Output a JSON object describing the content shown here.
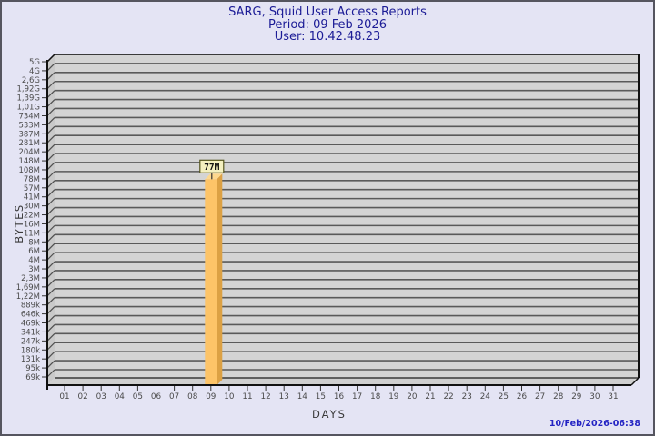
{
  "header": {
    "title": "SARG, Squid User Access Reports",
    "period": "Period: 09 Feb 2026",
    "user": "User: 10.42.48.23",
    "text_color": "#1C1C96"
  },
  "footer": {
    "timestamp": "10/Feb/2026-06:38",
    "text_color": "#2323C3"
  },
  "chart_data": {
    "type": "bar",
    "style": "3d-bar",
    "title": "SARG, Squid User Access Reports",
    "subtitle_lines": [
      "Period: 09 Feb 2026",
      "User: 10.42.48.23"
    ],
    "xlabel": "DAYS",
    "ylabel": "BYTES",
    "grid": true,
    "x_categories": [
      "01",
      "02",
      "03",
      "04",
      "05",
      "06",
      "07",
      "08",
      "09",
      "10",
      "11",
      "12",
      "13",
      "14",
      "15",
      "16",
      "17",
      "18",
      "19",
      "20",
      "21",
      "22",
      "23",
      "24",
      "25",
      "26",
      "27",
      "28",
      "29",
      "30",
      "31"
    ],
    "y_axis": {
      "scale": "logarithmic",
      "top_label": "5G",
      "bottom_label": "69k",
      "tick_labels": [
        "5G",
        "4G",
        "2,6G",
        "1,92G",
        "1,39G",
        "1,01G",
        "734M",
        "533M",
        "387M",
        "281M",
        "204M",
        "148M",
        "108M",
        "78M",
        "57M",
        "41M",
        "30M",
        "22M",
        "16M",
        "11M",
        "8M",
        "6M",
        "4M",
        "3M",
        "2,3M",
        "1,69M",
        "1,22M",
        "889k",
        "646k",
        "469k",
        "341k",
        "247k",
        "180k",
        "131k",
        "95k",
        "69k"
      ]
    },
    "bars": [
      {
        "day": "09",
        "value": "77M"
      }
    ],
    "colors": {
      "background": "#E4E4F4",
      "border": "#55555F",
      "plot_face": "#D4D4D4",
      "plot_wall": "#C9C9C9",
      "plot_floor": "#CFCFCF",
      "gridline": "#5A5A5A",
      "grid_edge": "#3A3A3A",
      "axis": "#111111",
      "tick_line": "#333333",
      "slant_line": "#4F4F4F",
      "tick_text": "#4A4A4A",
      "axis_title_text": "#3A3A3A",
      "bar_front": "#FDC468",
      "bar_side": "#DCA144",
      "bar_top": "#FDD88F",
      "value_box_bg": "#F4F0C0",
      "value_box_border": "#55551E",
      "value_text": "#111111"
    }
  }
}
